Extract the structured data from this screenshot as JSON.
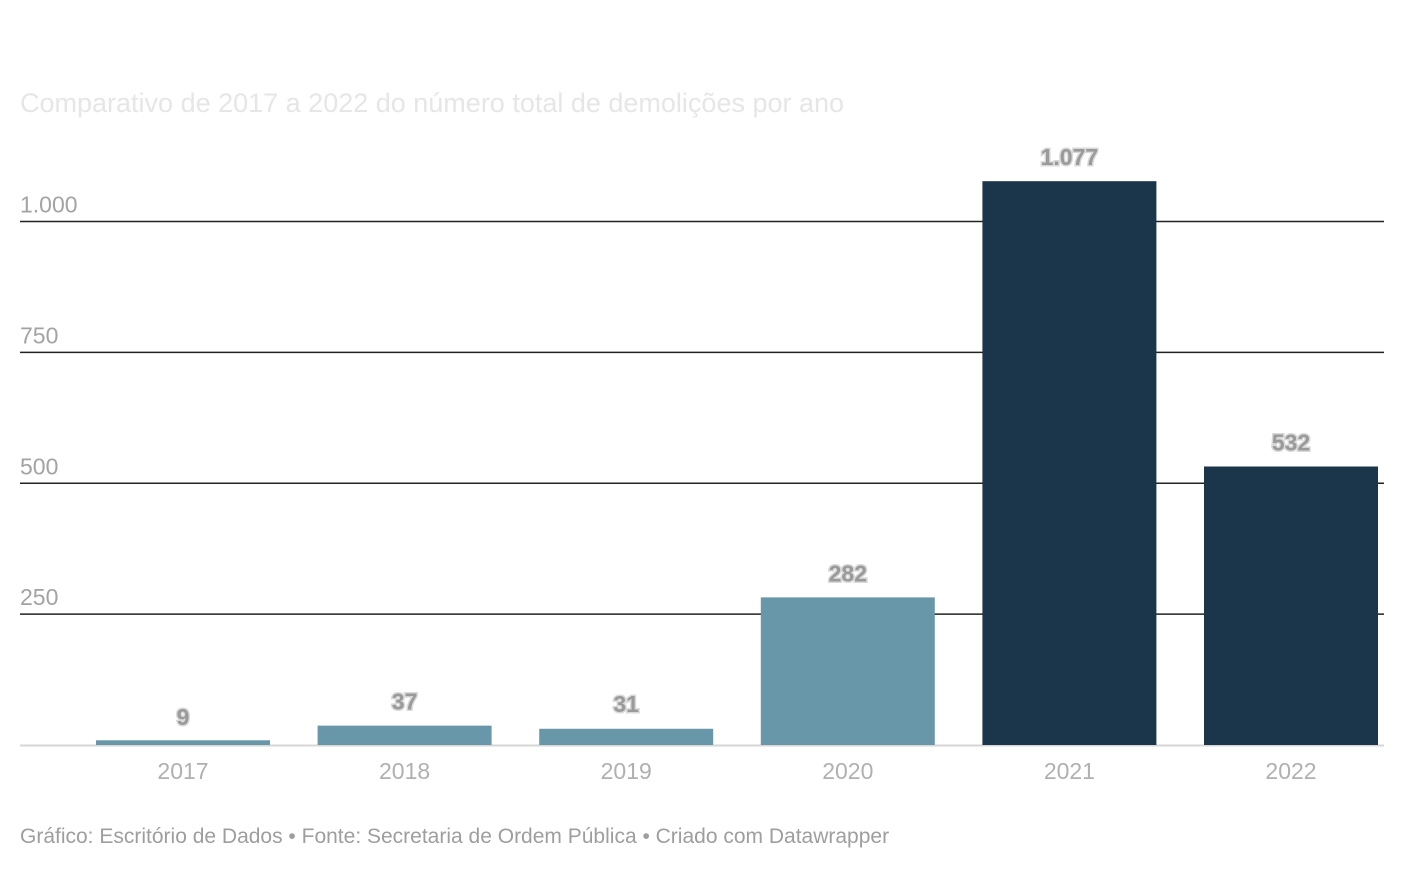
{
  "title": "Comparativo de 2017 a 2022 do número total de demolições por ano",
  "footer": "Gráfico: Escritório de Dados • Fonte: Secretaria de Ordem Pública • Criado com Datawrapper",
  "colors": {
    "bar_light": "#6897aa",
    "bar_dark": "#1b354b",
    "gridline": "#222222",
    "baseline": "#d6d6d6"
  },
  "chart_data": {
    "type": "bar",
    "title": "Comparativo de 2017 a 2022 do número total de demolições por ano",
    "xlabel": "",
    "ylabel": "",
    "categories": [
      "2017",
      "2018",
      "2019",
      "2020",
      "2021",
      "2022"
    ],
    "values": [
      9,
      37,
      31,
      282,
      1077,
      532
    ],
    "value_labels": [
      "9",
      "37",
      "31",
      "282",
      "1.077",
      "532"
    ],
    "highlighted": [
      false,
      false,
      false,
      false,
      true,
      true
    ],
    "ylim": [
      0,
      1077
    ],
    "yticks": [
      250,
      500,
      750,
      1000
    ],
    "ytick_labels": [
      "250",
      "500",
      "750",
      "1.000"
    ],
    "grid": true,
    "legend": "none"
  }
}
